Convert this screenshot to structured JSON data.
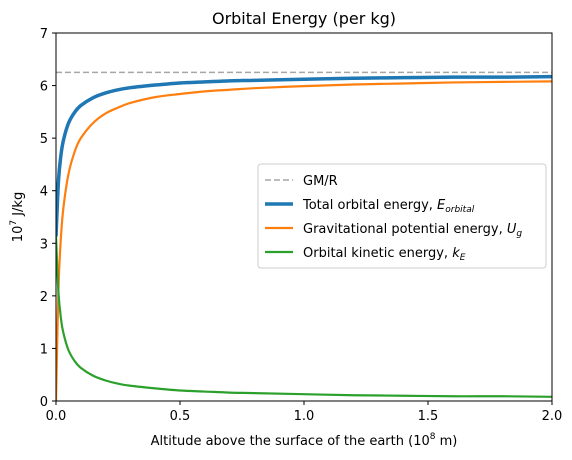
{
  "chart_data": {
    "type": "line",
    "title": "Orbital Energy (per kg)",
    "xlabel": "Altitude above the surface of the earth (10⁸ m)",
    "ylabel": "10⁷ J/kg",
    "xlim": [
      0.0,
      2.0
    ],
    "ylim": [
      0,
      7
    ],
    "x_ticks": [
      "0.0",
      "0.5",
      "1.0",
      "1.5",
      "2.0"
    ],
    "y_ticks": [
      "0",
      "1",
      "2",
      "3",
      "4",
      "5",
      "6",
      "7"
    ],
    "grid": false,
    "legend_position": "center-right",
    "x": [
      0.0,
      0.01,
      0.02,
      0.03,
      0.05,
      0.075,
      0.1,
      0.15,
      0.2,
      0.25,
      0.3,
      0.4,
      0.5,
      0.6,
      0.7,
      0.8,
      1.0,
      1.2,
      1.4,
      1.6,
      1.8,
      2.0
    ],
    "series": [
      {
        "name": "GM/R",
        "style": "dashed",
        "color": "#a6a6a6",
        "values": [
          6.25,
          6.25,
          6.25,
          6.25,
          6.25,
          6.25,
          6.25,
          6.25,
          6.25,
          6.25,
          6.25,
          6.25,
          6.25,
          6.25,
          6.25,
          6.25,
          6.25,
          6.25,
          6.25,
          6.25,
          6.25,
          6.25
        ]
      },
      {
        "name": "Total orbital energy, E_orbital",
        "name_main": "Total orbital energy, ",
        "name_sym": "E",
        "name_sub": "orbital",
        "style": "solid",
        "color": "#1f77b4",
        "values": [
          3.13,
          4.19,
          4.68,
          4.96,
          5.28,
          5.49,
          5.62,
          5.77,
          5.86,
          5.92,
          5.96,
          6.01,
          6.05,
          6.07,
          6.09,
          6.1,
          6.12,
          6.14,
          6.15,
          6.16,
          6.16,
          6.17
        ]
      },
      {
        "name": "Gravitational potential energy, U_g",
        "name_main": "Gravitational potential energy, ",
        "name_sym": "U",
        "name_sub": "g",
        "style": "solid",
        "color": "#ff7f0e",
        "values": [
          0.0,
          2.14,
          3.12,
          3.68,
          4.31,
          4.74,
          5.0,
          5.29,
          5.47,
          5.58,
          5.67,
          5.78,
          5.84,
          5.89,
          5.92,
          5.95,
          5.99,
          6.02,
          6.04,
          6.06,
          6.07,
          6.08
        ]
      },
      {
        "name": "Orbital kinetic energy, k_E",
        "name_main": "Orbital kinetic energy, ",
        "name_sym": "k",
        "name_sub": "E",
        "style": "solid",
        "color": "#2ca02c",
        "values": [
          3.13,
          2.06,
          1.57,
          1.29,
          0.97,
          0.76,
          0.63,
          0.48,
          0.39,
          0.33,
          0.29,
          0.24,
          0.2,
          0.18,
          0.16,
          0.15,
          0.13,
          0.11,
          0.1,
          0.09,
          0.09,
          0.08
        ]
      }
    ]
  }
}
